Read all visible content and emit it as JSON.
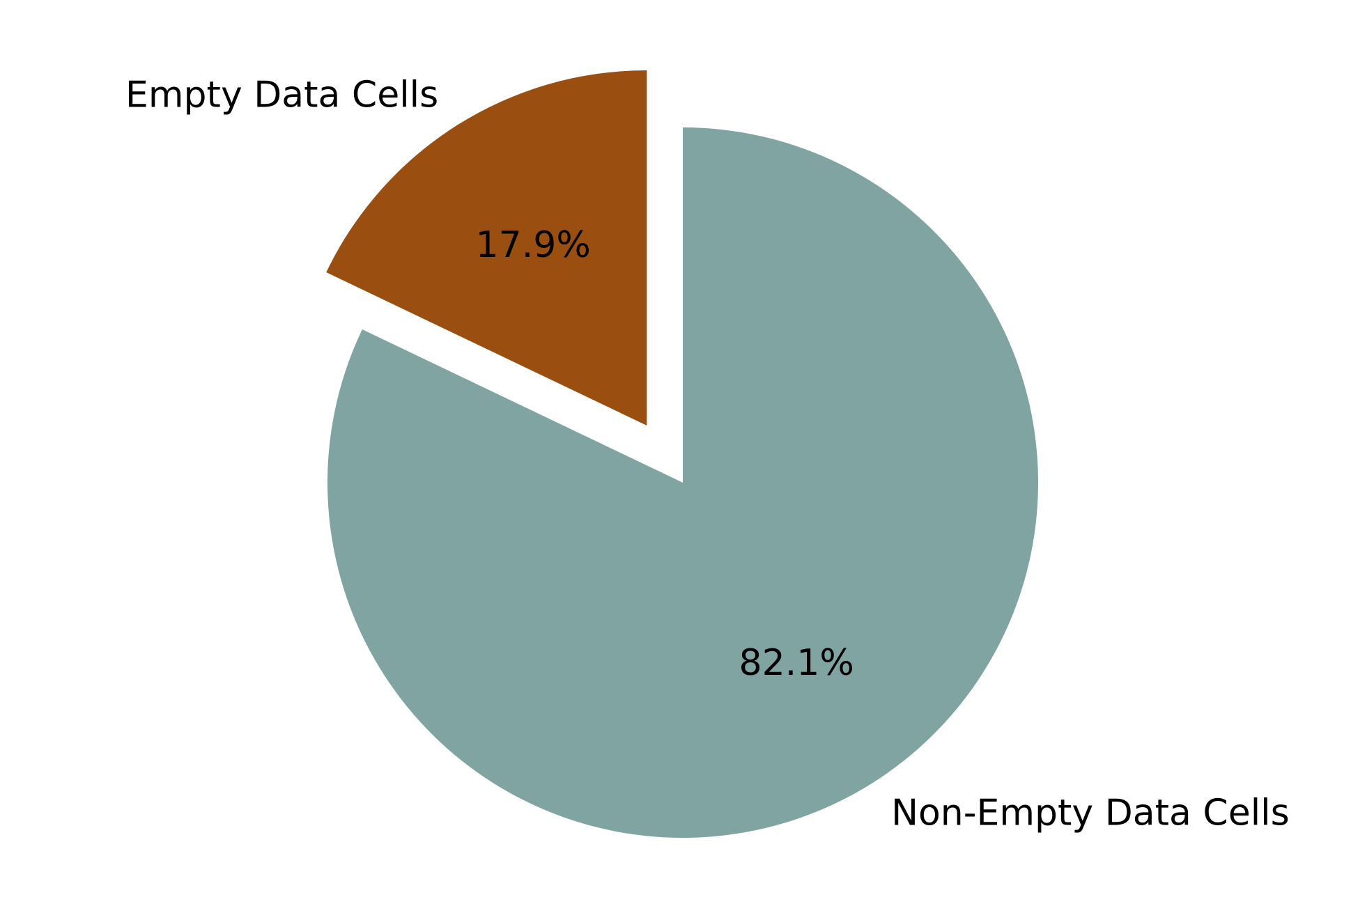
{
  "chart_data": {
    "type": "pie",
    "title": "",
    "start_angle_deg": 90,
    "direction": "counterclockwise",
    "slices": [
      {
        "label": "Empty Data Cells",
        "value": 17.9,
        "pct_label": "17.9%",
        "color": "#9a4f10",
        "exploded": true
      },
      {
        "label": "Non-Empty Data Cells",
        "value": 82.1,
        "pct_label": "82.1%",
        "color": "#7fa4a1",
        "exploded": false
      }
    ],
    "legend": "none"
  }
}
